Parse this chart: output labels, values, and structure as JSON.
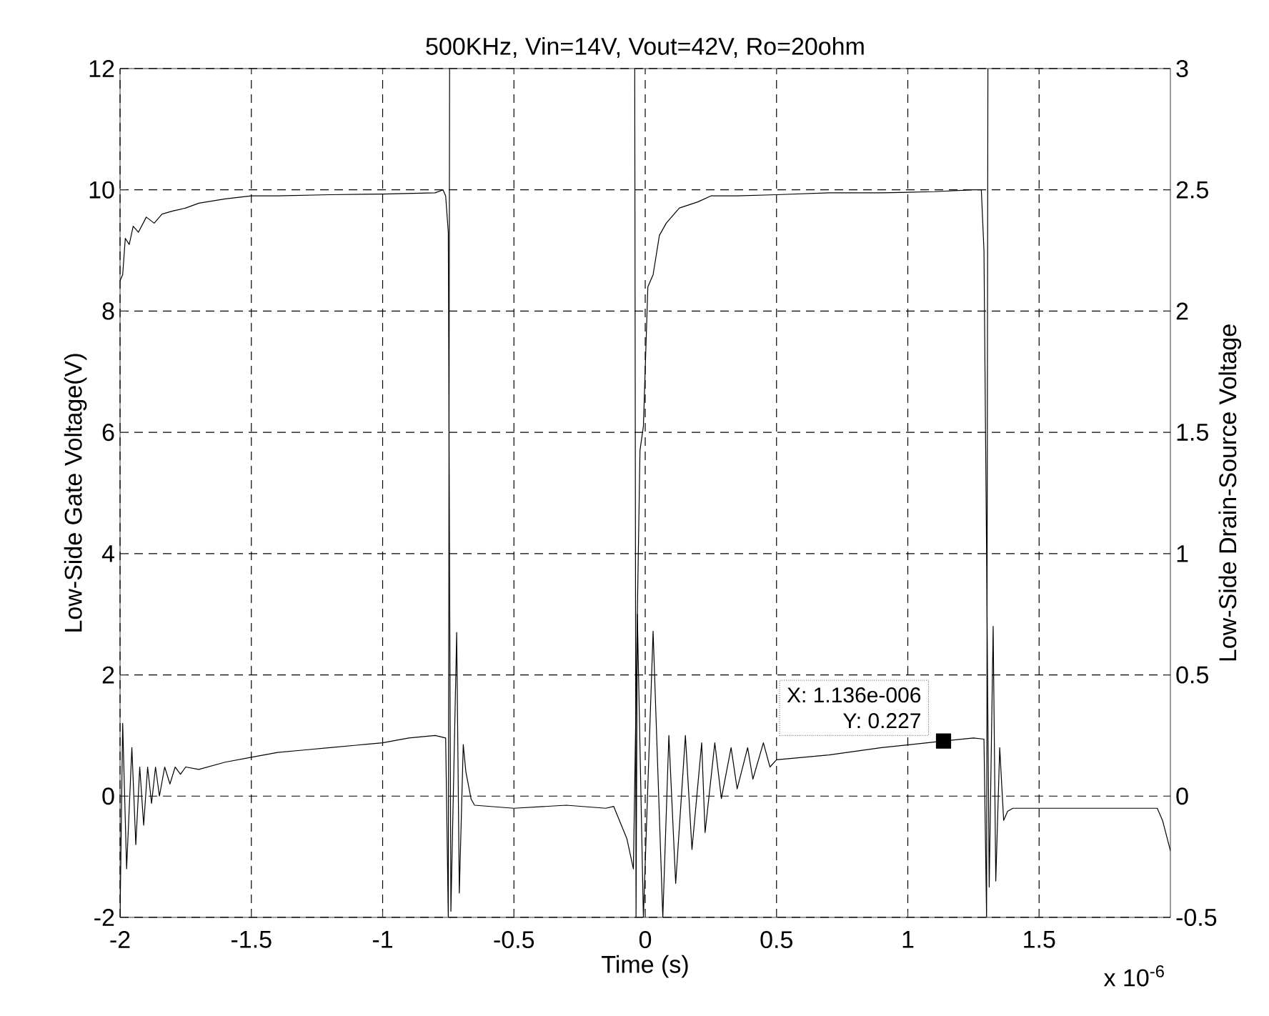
{
  "chart_data": {
    "type": "line",
    "title": "500KHz, Vin=14V, Vout=42V, Ro=20ohm",
    "xlabel": "Time (s)",
    "ylabel": "Low-Side Gate Voltage(V)",
    "y2label": "Low-Side Drain-Source Voltage",
    "xlim": [
      -2,
      2
    ],
    "xticks": [
      -2,
      -1.5,
      -1,
      -0.5,
      0,
      0.5,
      1,
      1.5
    ],
    "ylim": [
      -2,
      12
    ],
    "yticks": [
      -2,
      0,
      2,
      4,
      6,
      8,
      10,
      12
    ],
    "y2lim": [
      -0.5,
      3
    ],
    "y2ticks": [
      -0.5,
      0,
      0.5,
      1,
      1.5,
      2,
      2.5,
      3
    ],
    "grid": true,
    "series": [
      {
        "color": "#000000",
        "x": [
          -2,
          -1.99,
          -1.98,
          -1.965,
          -1.95,
          -1.93,
          -1.9,
          -1.87,
          -1.84,
          -1.8,
          -1.75,
          -1.7,
          -1.6,
          -1.5,
          -1.4,
          -1.2,
          -1.0,
          -0.8,
          -0.77,
          -0.76,
          -0.75,
          -0.74,
          -0.718,
          -0.708,
          -0.693,
          -0.683,
          -0.663,
          -0.65,
          -0.5,
          -0.3,
          -0.15,
          -0.12,
          -0.07,
          -0.045,
          -0.03,
          -0.02,
          -0.007,
          0.01,
          0.03,
          0.054,
          0.08,
          0.13,
          0.2,
          0.25,
          0.35,
          0.5,
          0.7,
          0.9,
          1.1,
          1.25,
          1.28,
          1.29,
          1.3,
          1.31,
          1.325,
          1.335,
          1.35,
          1.365,
          1.38,
          1.4,
          1.6,
          1.8,
          1.95,
          1.97,
          2.0
        ],
        "values": [
          8.5,
          8.6,
          9.2,
          9.1,
          9.4,
          9.3,
          9.55,
          9.45,
          9.6,
          9.65,
          9.7,
          9.78,
          9.85,
          9.9,
          9.9,
          9.92,
          9.93,
          9.95,
          10.0,
          9.9,
          9.3,
          -1.9,
          2.7,
          -1.6,
          0.85,
          0.4,
          -0.05,
          -0.15,
          -0.2,
          -0.15,
          -0.2,
          -0.17,
          -0.7,
          -1.2,
          3.0,
          5.7,
          6.1,
          8.4,
          8.6,
          9.25,
          9.45,
          9.7,
          9.8,
          9.9,
          9.9,
          9.92,
          9.95,
          9.95,
          9.97,
          10.0,
          10.0,
          9.0,
          4.0,
          -1.5,
          2.8,
          -1.4,
          0.8,
          -0.4,
          -0.25,
          -0.2,
          -0.2,
          -0.2,
          -0.2,
          -0.4,
          -0.9
        ]
      },
      {
        "color": "#000000",
        "axis": "y2",
        "x": [
          -2,
          -1.99,
          -1.975,
          -1.955,
          -1.94,
          -1.925,
          -1.91,
          -1.895,
          -1.88,
          -1.865,
          -1.85,
          -1.83,
          -1.81,
          -1.79,
          -1.77,
          -1.75,
          -1.7,
          -1.6,
          -1.5,
          -1.4,
          -1.3,
          -1.2,
          -1.1,
          -1.0,
          -0.9,
          -0.8,
          -0.76,
          -0.75,
          -0.745,
          -0.6,
          -0.04,
          -0.035,
          -0.03,
          -0.007,
          0.03,
          0.067,
          0.09,
          0.116,
          0.153,
          0.178,
          0.215,
          0.228,
          0.265,
          0.29,
          0.327,
          0.35,
          0.39,
          0.41,
          0.45,
          0.475,
          0.5,
          0.7,
          0.9,
          1.136,
          1.25,
          1.29,
          1.3,
          1.305
        ],
        "values": [
          -0.5,
          0.3,
          -0.3,
          0.2,
          -0.2,
          0.12,
          -0.12,
          0.12,
          -0.03,
          0.12,
          0.0,
          0.12,
          0.05,
          0.12,
          0.09,
          0.12,
          0.11,
          0.14,
          0.16,
          0.18,
          0.19,
          0.2,
          0.21,
          0.22,
          0.24,
          0.25,
          0.24,
          -0.5,
          3,
          null,
          3,
          -0.5,
          0.75,
          -0.5,
          0.68,
          -0.5,
          0.25,
          -0.36,
          0.25,
          -0.22,
          0.22,
          -0.15,
          0.22,
          -0.01,
          0.2,
          0.03,
          0.2,
          0.07,
          0.22,
          0.12,
          0.15,
          0.17,
          0.2,
          0.227,
          0.24,
          0.235,
          -0.5,
          3
        ]
      },
      {
        "type": "scatter",
        "color": "#000000",
        "axis": "y2",
        "marker": "square",
        "x": [
          1.136
        ],
        "values": [
          0.227
        ]
      }
    ],
    "annotations": [
      "X: 1.136e-006",
      "Y: 0.227",
      "x 10$^{-6}$"
    ]
  }
}
